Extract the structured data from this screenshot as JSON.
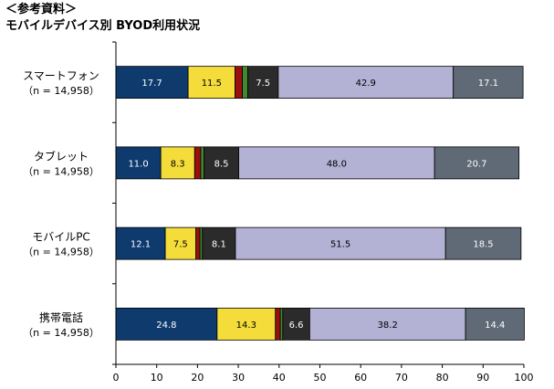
{
  "header": {
    "line1": "＜参考資料＞",
    "line2": "モバイルデバイス別 BYOD利用状況"
  },
  "colors": [
    "#0e3a6e",
    "#f4dc3a",
    "#9a1010",
    "#3f8a2e",
    "#2b2b2b",
    "#b3b1d4",
    "#5f6a76"
  ],
  "label_colors": [
    "#ffffff",
    "#000000",
    "#ffffff",
    "#ffffff",
    "#ffffff",
    "#000000",
    "#ffffff"
  ],
  "chart_data": {
    "type": "bar",
    "orientation": "horizontal",
    "stacked": true,
    "categories": [
      {
        "name": "スマートフォン",
        "n": "（n = 14,958）"
      },
      {
        "name": "タブレット",
        "n": "（n = 14,958）"
      },
      {
        "name": "モバイルPC",
        "n": "（n = 14,958）"
      },
      {
        "name": "携帯電話",
        "n": "（n = 14,958）"
      }
    ],
    "series": [
      {
        "values": [
          17.7,
          11.0,
          12.1,
          24.8
        ]
      },
      {
        "values": [
          11.5,
          8.3,
          7.5,
          14.3
        ]
      },
      {
        "values": [
          1.8,
          1.5,
          1.0,
          1.2
        ]
      },
      {
        "values": [
          1.3,
          0.8,
          0.6,
          0.6
        ]
      },
      {
        "values": [
          7.5,
          8.5,
          8.1,
          6.6
        ]
      },
      {
        "values": [
          42.9,
          48.0,
          51.5,
          38.2
        ]
      },
      {
        "values": [
          17.1,
          20.7,
          18.5,
          14.4
        ]
      }
    ],
    "data_labels": [
      [
        "17.7",
        "11.5",
        "",
        "",
        "7.5",
        "42.9",
        "17.1"
      ],
      [
        "11.0",
        "8.3",
        "",
        "",
        "8.5",
        "48.0",
        "20.7"
      ],
      [
        "12.1",
        "7.5",
        "",
        "",
        "8.1",
        "51.5",
        "18.5"
      ],
      [
        "24.8",
        "14.3",
        "",
        "",
        "6.6",
        "38.2",
        "14.4"
      ]
    ],
    "xlim": [
      0,
      100
    ],
    "xticks": [
      0,
      10,
      20,
      30,
      40,
      50,
      60,
      70,
      80,
      90,
      100
    ],
    "grid": false,
    "legend": "none"
  }
}
